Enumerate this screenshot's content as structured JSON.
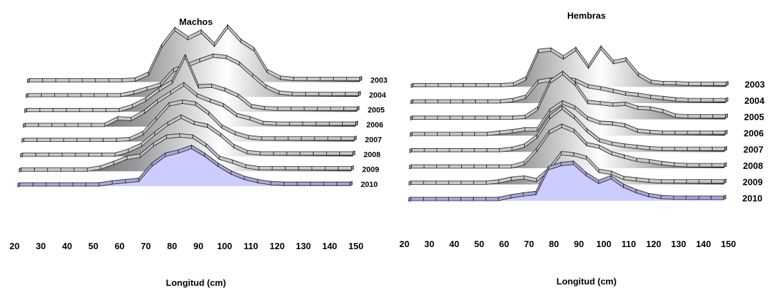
{
  "chart_data": [
    {
      "type": "area",
      "title": "Machos",
      "xlabel": "Longitud (cm)",
      "xlim": [
        20,
        150
      ],
      "x_ticks": [
        "20",
        "30",
        "40",
        "50",
        "60",
        "70",
        "80",
        "90",
        "100",
        "110",
        "120",
        "130",
        "140",
        "150"
      ],
      "x": [
        22,
        27,
        32,
        37,
        42,
        47,
        52,
        57,
        62,
        67,
        72,
        77,
        82,
        87,
        92,
        97,
        102,
        107,
        112,
        117,
        122,
        127,
        132,
        137,
        142,
        147
      ],
      "series": [
        {
          "name": "2003",
          "values": [
            0,
            0,
            0,
            0,
            0,
            0,
            0,
            0,
            0.01,
            0.1,
            0.52,
            0.78,
            0.64,
            0.74,
            0.54,
            0.82,
            0.6,
            0.47,
            0.14,
            0.04,
            0.02,
            0.02,
            0.02,
            0.02,
            0.02,
            0.02
          ]
        },
        {
          "name": "2004",
          "values": [
            0,
            0,
            0,
            0,
            0,
            0,
            0,
            0,
            0.04,
            0.1,
            0.16,
            0.38,
            0.45,
            0.53,
            0.6,
            0.58,
            0.48,
            0.3,
            0.13,
            0.04,
            0.02,
            0.02,
            0.02,
            0.02,
            0.02,
            0.02
          ]
        },
        {
          "name": "2005",
          "values": [
            0,
            0,
            0,
            0,
            0,
            0,
            0,
            0,
            0.06,
            0.16,
            0.31,
            0.43,
            0.82,
            0.36,
            0.37,
            0.31,
            0.22,
            0.06,
            0.03,
            0.02,
            0.02,
            0.02,
            0.02,
            0.02,
            0.02,
            0.02
          ]
        },
        {
          "name": "2006",
          "values": [
            0,
            0,
            0,
            0,
            0,
            0,
            0,
            0.1,
            0.09,
            0.2,
            0.36,
            0.49,
            0.62,
            0.45,
            0.37,
            0.3,
            0.15,
            0.1,
            0.03,
            0.02,
            0.02,
            0.02,
            0.02,
            0.02,
            0.02,
            0.02
          ]
        },
        {
          "name": "2007",
          "values": [
            0,
            0,
            0,
            0,
            0,
            0,
            0,
            0,
            0.01,
            0.1,
            0.32,
            0.54,
            0.58,
            0.55,
            0.4,
            0.2,
            0.1,
            0.04,
            0.02,
            0.02,
            0.02,
            0.02,
            0.02,
            0.02,
            0.02,
            0.02
          ]
        },
        {
          "name": "2008",
          "values": [
            0,
            0,
            0,
            0,
            0,
            0,
            0,
            0,
            0.06,
            0.15,
            0.32,
            0.47,
            0.58,
            0.48,
            0.44,
            0.3,
            0.13,
            0.04,
            0.02,
            0.02,
            0.02,
            0.02,
            0.02,
            0.02,
            0.02,
            0.02
          ]
        },
        {
          "name": "2009",
          "values": [
            0,
            0,
            0,
            0,
            0,
            0,
            0.03,
            0.1,
            0.18,
            0.21,
            0.38,
            0.5,
            0.52,
            0.5,
            0.37,
            0.18,
            0.12,
            0.05,
            0.02,
            0.02,
            0.02,
            0.02,
            0.02,
            0.02,
            0.02,
            0.02
          ]
        },
        {
          "name": "2010",
          "values": [
            0,
            0,
            0,
            0,
            0,
            0,
            0,
            0.03,
            0.05,
            0.07,
            0.3,
            0.45,
            0.5,
            0.57,
            0.45,
            0.3,
            0.18,
            0.1,
            0.05,
            0.02,
            0.01,
            0.01,
            0.01,
            0.01,
            0.01,
            0.01
          ]
        }
      ]
    },
    {
      "type": "area",
      "title": "Hembras",
      "xlabel": "Longitud (cm)",
      "xlim": [
        20,
        150
      ],
      "x_ticks": [
        "20",
        "30",
        "40",
        "50",
        "60",
        "70",
        "80",
        "90",
        "100",
        "110",
        "120",
        "130",
        "140",
        "150"
      ],
      "x": [
        22,
        27,
        32,
        37,
        42,
        47,
        52,
        57,
        62,
        67,
        72,
        77,
        82,
        87,
        92,
        97,
        102,
        107,
        112,
        117,
        122,
        127,
        132,
        137,
        142,
        147
      ],
      "series": [
        {
          "name": "2003",
          "values": [
            0,
            0,
            0,
            0,
            0,
            0,
            0,
            0,
            0.01,
            0.1,
            0.52,
            0.54,
            0.42,
            0.55,
            0.28,
            0.57,
            0.35,
            0.39,
            0.16,
            0.05,
            0.03,
            0.03,
            0.02,
            0.02,
            0.02,
            0.02
          ]
        },
        {
          "name": "2004",
          "values": [
            0,
            0,
            0,
            0,
            0,
            0,
            0,
            0,
            0.02,
            0.07,
            0.3,
            0.33,
            0.35,
            0.32,
            0.23,
            0.2,
            0.16,
            0.12,
            0.1,
            0.07,
            0.05,
            0.03,
            0.02,
            0.02,
            0.02,
            0.02
          ]
        },
        {
          "name": "2005",
          "values": [
            0,
            0,
            0,
            0,
            0,
            0,
            0,
            0,
            0,
            0.01,
            0.14,
            0.55,
            0.68,
            0.51,
            0.24,
            0.22,
            0.2,
            0.21,
            0.15,
            0.14,
            0.1,
            0.03,
            0.02,
            0.02,
            0.02,
            0.02
          ]
        },
        {
          "name": "2006",
          "values": [
            0,
            0,
            0,
            0,
            0,
            0,
            0,
            0.02,
            0.04,
            0.07,
            0.07,
            0.35,
            0.48,
            0.4,
            0.24,
            0.17,
            0.16,
            0.13,
            0.05,
            0.03,
            0.02,
            0.02,
            0.02,
            0.02,
            0.02,
            0.02
          ]
        },
        {
          "name": "2007",
          "values": [
            0,
            0,
            0,
            0,
            0,
            0,
            0,
            0,
            0.02,
            0.07,
            0.21,
            0.5,
            0.65,
            0.5,
            0.3,
            0.15,
            0.1,
            0.07,
            0.05,
            0.03,
            0.02,
            0.02,
            0.02,
            0.02,
            0.02,
            0.02
          ]
        },
        {
          "name": "2008",
          "values": [
            0,
            0,
            0,
            0,
            0,
            0,
            0,
            0,
            0,
            0.05,
            0.25,
            0.52,
            0.62,
            0.54,
            0.34,
            0.3,
            0.2,
            0.15,
            0.1,
            0.08,
            0.05,
            0.03,
            0.02,
            0.02,
            0.02,
            0.02
          ]
        },
        {
          "name": "2009",
          "values": [
            0,
            0,
            0,
            0,
            0,
            0,
            0,
            0.02,
            0.06,
            0.08,
            0.04,
            0.2,
            0.45,
            0.43,
            0.38,
            0.18,
            0.15,
            0.07,
            0.05,
            0.03,
            0.02,
            0.02,
            0.02,
            0.02,
            0.02,
            0.02
          ]
        },
        {
          "name": "2010",
          "values": [
            0,
            0,
            0,
            0,
            0,
            0,
            0,
            0,
            0.04,
            0.07,
            0.09,
            0.47,
            0.53,
            0.55,
            0.38,
            0.26,
            0.33,
            0.2,
            0.12,
            0.06,
            0.03,
            0.02,
            0.02,
            0.02,
            0.02,
            0.02
          ]
        }
      ]
    }
  ]
}
